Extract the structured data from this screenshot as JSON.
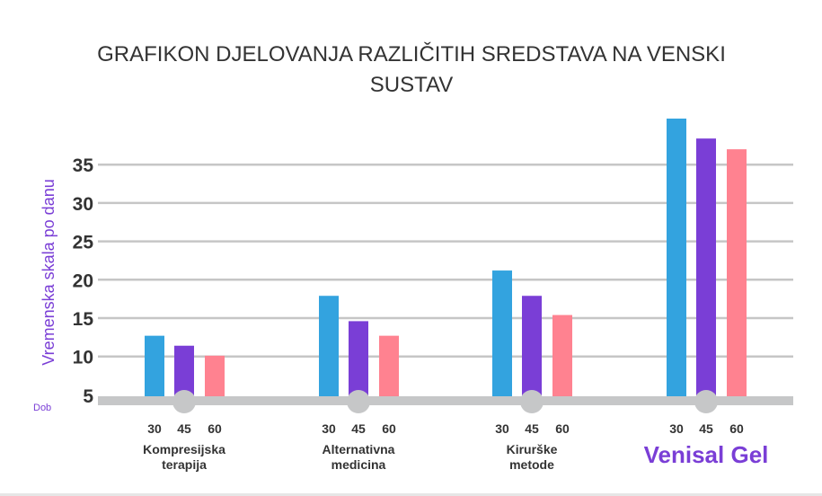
{
  "chart_data": {
    "type": "bar",
    "title_lines": [
      "GRAFIKON DJELOVANJA RAZLIČITIH SREDSTAVA NA VENSKI",
      "SUSTAV"
    ],
    "ylabel": "Vremenska skala po danu",
    "xlabel": "Dob",
    "ylim": [
      5,
      41
    ],
    "yticks": [
      "5",
      "10",
      "15",
      "20",
      "25",
      "30",
      "35"
    ],
    "grid": true,
    "series_names": [
      "30",
      "45",
      "60"
    ],
    "categories": [
      {
        "label_lines": [
          "Kompresijska",
          "terapija"
        ],
        "highlight": false,
        "values": [
          12.7,
          11.4,
          10.1
        ]
      },
      {
        "label_lines": [
          "Alternativna",
          "medicina"
        ],
        "highlight": false,
        "values": [
          17.9,
          14.6,
          12.7
        ]
      },
      {
        "label_lines": [
          "Kirurške",
          "metode"
        ],
        "highlight": false,
        "values": [
          21.2,
          17.9,
          15.4
        ]
      },
      {
        "label_lines": [
          "Venisal Gel"
        ],
        "highlight": true,
        "values": [
          41.0,
          38.4,
          37.0
        ]
      }
    ],
    "colors": [
      "#33a3df",
      "#7a3ed6",
      "#ff8290"
    ],
    "grid_color": "#c6c6c6",
    "axis_color": "#c6c7c8"
  }
}
